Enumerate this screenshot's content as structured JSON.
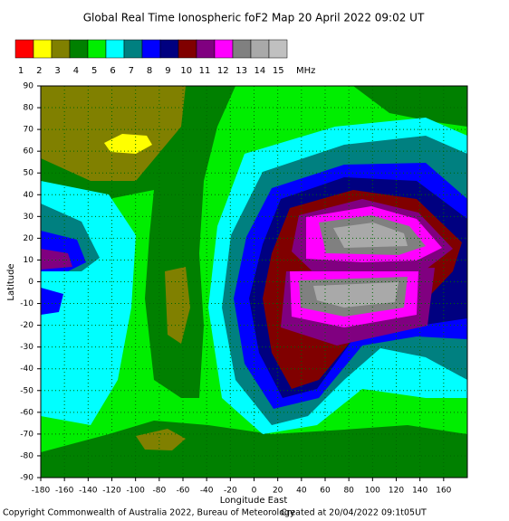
{
  "title": "Global Real Time Ionospheric foF2 Map  20 April 2022 09:02 UT",
  "legend": {
    "colors": [
      "#ff0000",
      "#ffff00",
      "#808000",
      "#008000",
      "#00ee00",
      "#00ffff",
      "#008080",
      "#0000ff",
      "#000080",
      "#800000",
      "#800080",
      "#ff00ff",
      "#808080",
      "#a9a9a9",
      "#c0c0c0"
    ],
    "labels": [
      1,
      2,
      3,
      4,
      5,
      6,
      7,
      8,
      9,
      10,
      11,
      12,
      13,
      14,
      15
    ],
    "unit": "MHz"
  },
  "x_axis": {
    "label": "Longitude East",
    "xlim": [
      -180,
      180
    ],
    "xticks": [
      -180,
      -160,
      -140,
      -120,
      -100,
      -80,
      -60,
      -40,
      -20,
      0,
      20,
      40,
      60,
      80,
      100,
      120,
      140,
      160
    ]
  },
  "y_axis": {
    "label": "Latitude",
    "ylim": [
      -90,
      90
    ],
    "yticks": [
      -90,
      -80,
      -70,
      -60,
      -50,
      -40,
      -30,
      -20,
      -10,
      0,
      10,
      20,
      30,
      40,
      50,
      60,
      70,
      80,
      90
    ]
  },
  "footer": {
    "copyright": "Copyright Commonwealth of Australia 2022, Bureau of Meteorology",
    "created": "Created at 20/04/2022 09:1t05UT"
  }
}
